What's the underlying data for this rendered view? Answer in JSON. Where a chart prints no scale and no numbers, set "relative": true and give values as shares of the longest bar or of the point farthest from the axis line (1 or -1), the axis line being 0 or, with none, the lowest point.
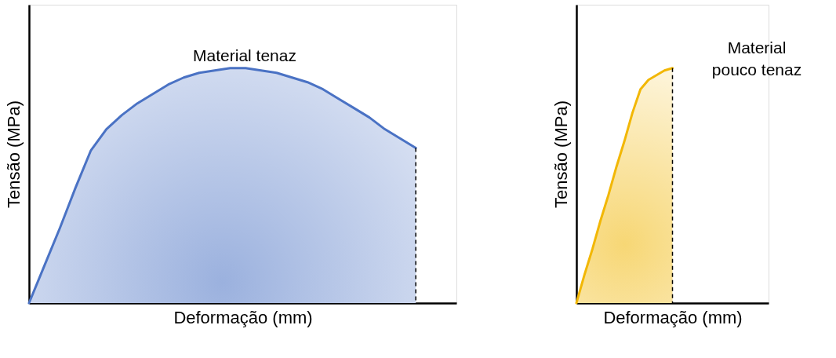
{
  "chart_data": [
    {
      "type": "area",
      "relative": true,
      "tick_labels": false,
      "grid": false,
      "xlabel": "Deformação (mm)",
      "ylabel": "Tensão (MPa)",
      "annotations": [
        "Material tenaz"
      ],
      "categories": [
        null,
        null,
        null,
        null,
        null,
        null,
        null,
        null,
        null,
        null,
        null,
        null,
        null,
        null,
        null,
        null,
        null,
        null,
        null,
        null,
        null,
        null,
        null,
        null,
        null,
        null
      ],
      "series": [
        {
          "color": "#4a72c4",
          "values": [
            0,
            0.16,
            0.32,
            0.49,
            0.65,
            0.74,
            0.8,
            0.85,
            0.89,
            0.93,
            0.96,
            0.98,
            0.99,
            1.0,
            1.0,
            0.99,
            0.98,
            0.96,
            0.94,
            0.91,
            0.87,
            0.83,
            0.79,
            0.74,
            0.7,
            0.66
          ]
        }
      ]
    },
    {
      "type": "area",
      "relative": true,
      "tick_labels": false,
      "grid": false,
      "xlabel": "Deformação (mm)",
      "ylabel": "Tensão (MPa)",
      "annotations": [
        "Material\npouco tenaz"
      ],
      "categories": [
        null,
        null,
        null,
        null,
        null,
        null,
        null,
        null,
        null,
        null,
        null,
        null,
        null
      ],
      "series": [
        {
          "color": "#f2b705",
          "values": [
            0,
            0.12,
            0.23,
            0.35,
            0.46,
            0.58,
            0.69,
            0.81,
            0.91,
            0.95,
            0.97,
            0.99,
            1.0
          ]
        }
      ]
    }
  ]
}
